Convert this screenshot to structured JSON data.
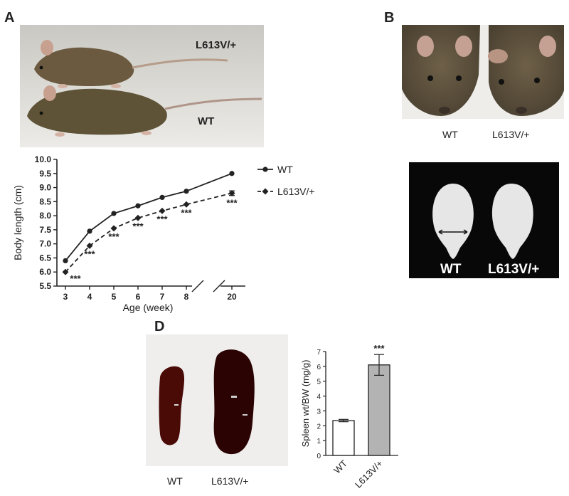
{
  "panels": {
    "a": "A",
    "b": "B",
    "d": "D"
  },
  "panel_a": {
    "photo_label_mutant": "L613V/+",
    "photo_label_wt": "WT"
  },
  "panel_b": {
    "face_label_wt": "WT",
    "face_label_mutant": "L613V/+",
    "skull_label_wt": "WT",
    "skull_label_mutant": "L613V/+"
  },
  "panel_d": {
    "spleen_label_wt": "WT",
    "spleen_label_mutant": "L613V/+"
  },
  "chart_data": [
    {
      "id": "body-length",
      "type": "line",
      "xlabel": "Age (week)",
      "ylabel": "Body length (cm)",
      "ylim": [
        5.5,
        10.0
      ],
      "yticks": [
        "5.5",
        "6.0",
        "6.5",
        "7.0",
        "7.5",
        "8.0",
        "8.5",
        "9.0",
        "9.5",
        "10.0"
      ],
      "categories": [
        "3",
        "4",
        "5",
        "6",
        "7",
        "8",
        "20"
      ],
      "axis_break": "between 8 and 20",
      "legend_position": "right",
      "series": [
        {
          "name": "WT",
          "marker": "circle",
          "line": "solid",
          "values": [
            6.4,
            7.45,
            8.08,
            8.35,
            8.65,
            8.87,
            9.5
          ]
        },
        {
          "name": "L613V/+",
          "marker": "diamond",
          "line": "dashed",
          "values": [
            6.0,
            6.93,
            7.55,
            7.92,
            8.17,
            8.4,
            8.8
          ]
        }
      ],
      "significance": [
        "***",
        "***",
        "***",
        "***",
        "***",
        "***",
        "***"
      ],
      "grid": false
    },
    {
      "id": "spleen-weight",
      "type": "bar",
      "ylabel": "Spleen wt/BW (mg/g)",
      "ylim": [
        0,
        7
      ],
      "yticks": [
        "0",
        "1",
        "2",
        "3",
        "4",
        "5",
        "6",
        "7"
      ],
      "categories": [
        "WT",
        "L613V/+"
      ],
      "values": [
        2.35,
        6.1
      ],
      "errors": [
        0.08,
        0.7
      ],
      "bar_colors": [
        "#ffffff",
        "#b3b3b3"
      ],
      "significance": [
        "",
        "***"
      ],
      "grid": false
    }
  ]
}
